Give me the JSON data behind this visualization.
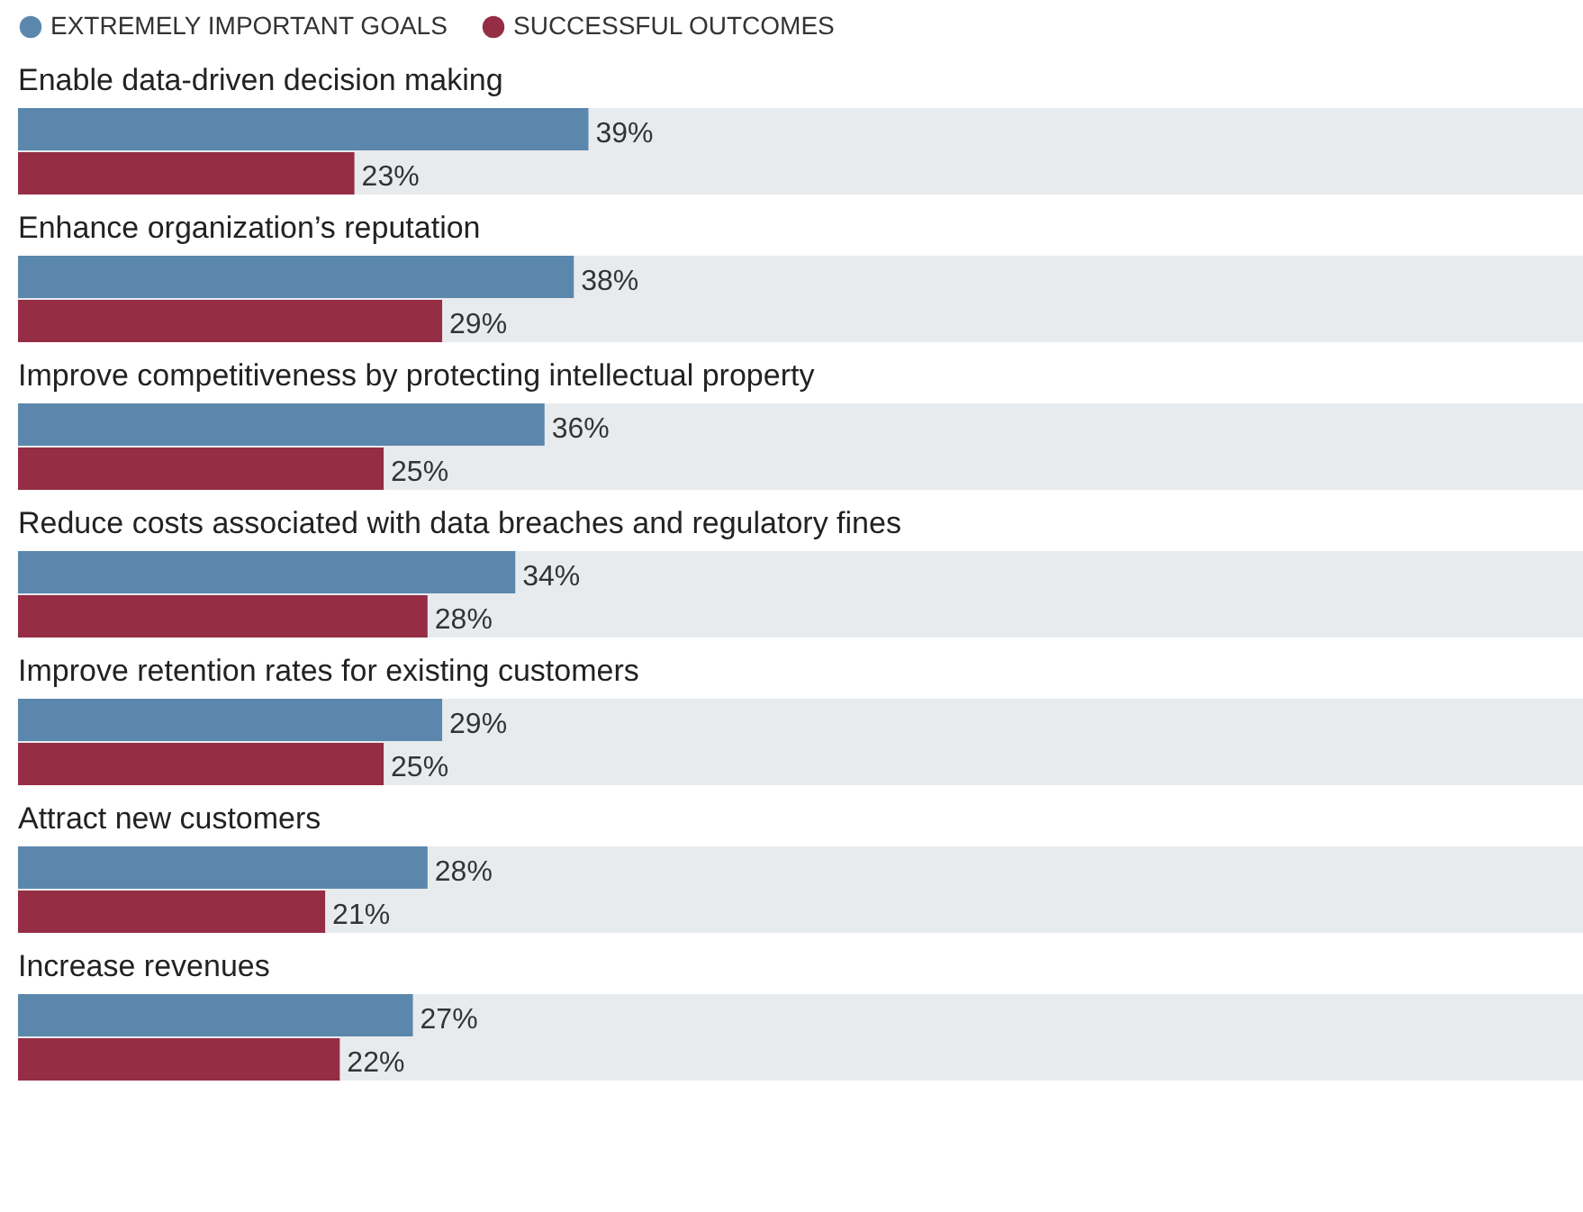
{
  "chart_data": {
    "type": "bar",
    "orientation": "horizontal",
    "legend": "top",
    "bands": [
      {
        "axis": "x",
        "from": 0,
        "to": 107,
        "color": "#e8ebee"
      },
      {
        "axis": "x",
        "from": 0,
        "to": 107,
        "color": "#e8ebee"
      },
      {
        "axis": "x",
        "from": 0,
        "to": 107,
        "color": "#e8ebee"
      },
      {
        "axis": "x",
        "from": 0,
        "to": 107,
        "color": "#e8ebee"
      },
      {
        "axis": "x",
        "from": 0,
        "to": 107,
        "color": "#e8ebee"
      },
      {
        "axis": "x",
        "from": 0,
        "to": 107,
        "color": "#e8ebee"
      },
      {
        "axis": "x",
        "from": 0,
        "to": 107,
        "color": "#e8ebee"
      }
    ],
    "categories": [
      "Enable data-driven decision making",
      "Enhance organization’s reputation",
      "Improve competitiveness by protecting intellectual property",
      "Reduce costs associated with data breaches and regulatory fines",
      "Improve retention rates for existing customers",
      "Attract new customers",
      "Increase revenues"
    ],
    "series": [
      {
        "name": "EXTREMELY IMPORTANT GOALS",
        "color": "#5b87ad",
        "values": [
          39,
          38,
          36,
          34,
          29,
          28,
          27
        ],
        "value_labels": [
          "39%",
          "38%",
          "36%",
          "34%",
          "29%",
          "28%",
          "27%"
        ]
      },
      {
        "name": "SUCCESSFUL OUTCOMES",
        "color": "#952d45",
        "values": [
          23,
          29,
          25,
          28,
          25,
          21,
          22
        ],
        "value_labels": [
          "23%",
          "29%",
          "25%",
          "28%",
          "25%",
          "21%",
          "22%"
        ]
      }
    ]
  }
}
